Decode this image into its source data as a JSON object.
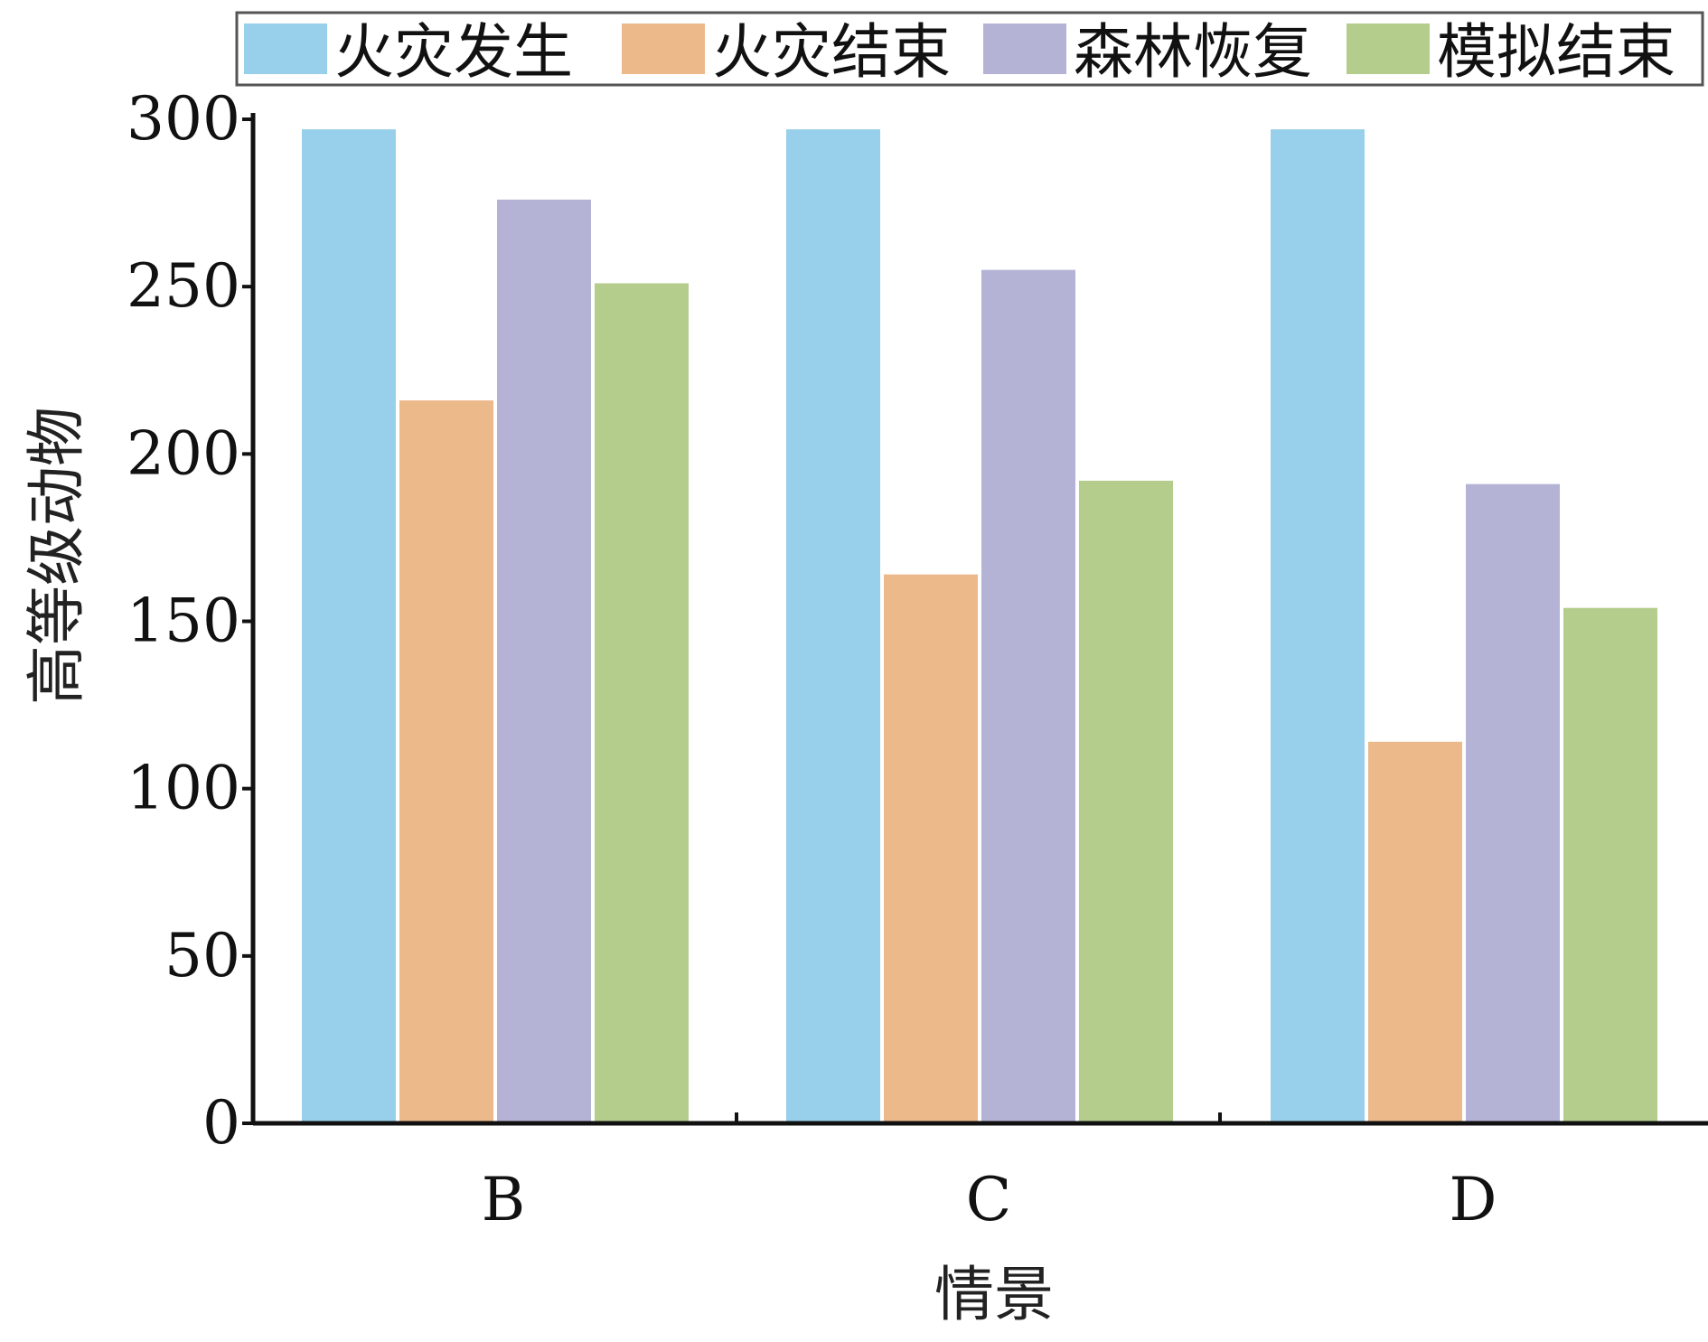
{
  "chart_data": {
    "type": "bar",
    "categories": [
      "B",
      "C",
      "D"
    ],
    "series": [
      {
        "name": "火灾发生",
        "color": "#98cfea",
        "values": [
          297,
          297,
          297
        ]
      },
      {
        "name": "火灾结束",
        "color": "#ecb98b",
        "values": [
          216,
          164,
          114
        ]
      },
      {
        "name": "森林恢复",
        "color": "#b5b3d5",
        "values": [
          276,
          255,
          191
        ]
      },
      {
        "name": "模拟结束",
        "color": "#b4cd8d",
        "values": [
          251,
          192,
          154
        ]
      }
    ],
    "xlabel": "情景",
    "ylabel": "高等级动物",
    "ylim": [
      0,
      300
    ],
    "yticks": [
      0,
      50,
      100,
      150,
      200,
      250,
      300
    ],
    "legend_position": "top",
    "grid": false
  }
}
